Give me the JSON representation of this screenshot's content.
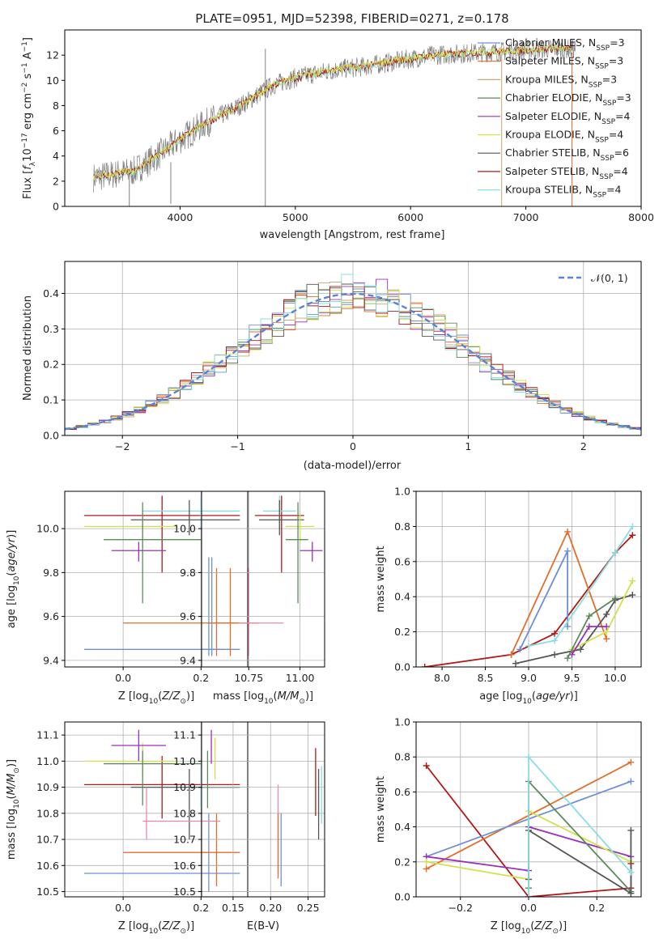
{
  "colors": {
    "observed": "#808080",
    "chabrier_miles": "#6e8fd8",
    "salpeter_miles": "#e36e2a",
    "kroupa_miles": "#c9a86a",
    "chabrier_elodie": "#5a8a5a",
    "salpeter_elodie": "#9b30b8",
    "kroupa_elodie": "#d4e04a",
    "chabrier_stelib": "#555555",
    "salpeter_stelib": "#b01818",
    "kroupa_stelib": "#88dde0",
    "pink": "#ee88aa",
    "normal_curve": "#5b84d4"
  },
  "chart_data": [
    {
      "id": "spectrum",
      "type": "line",
      "title": "PLATE=0951, MJD=52398, FIBERID=0271, z=0.178",
      "xlabel": "wavelength [Angstrom, rest frame]",
      "ylabel": "Flux [f_λ10^-17 erg cm^-2 s^-1 A^-1]",
      "xlim": [
        3000,
        8000
      ],
      "ylim": [
        0,
        14
      ],
      "xticks": [
        4000,
        5000,
        6000,
        7000,
        8000
      ],
      "yticks": [
        0,
        2,
        4,
        6,
        8,
        10,
        12
      ],
      "grid": false,
      "legend_position": "top-right",
      "continuum": {
        "x": [
          3250,
          3400,
          3600,
          3800,
          4000,
          4200,
          4400,
          4600,
          4800,
          5000,
          5200,
          5400,
          5600,
          5800,
          6000,
          6200,
          6400,
          6600,
          6800,
          7000,
          7200,
          7400
        ],
        "y": [
          2.3,
          2.5,
          2.8,
          4.0,
          5.3,
          6.5,
          7.4,
          8.4,
          9.6,
          10.2,
          10.6,
          10.9,
          11.1,
          11.4,
          11.7,
          12.0,
          12.1,
          12.2,
          12.3,
          12.4,
          12.5,
          12.5
        ]
      },
      "legend": [
        {
          "label": "Chabrier MILES, N",
          "sub": "SSP",
          "value": "=3",
          "color_key": "chabrier_miles"
        },
        {
          "label": "Salpeter MILES, N",
          "sub": "SSP",
          "value": "=3",
          "color_key": "salpeter_miles"
        },
        {
          "label": "Kroupa MILES, N",
          "sub": "SSP",
          "value": "=3",
          "color_key": "kroupa_miles"
        },
        {
          "label": "Chabrier ELODIE, N",
          "sub": "SSP",
          "value": "=3",
          "color_key": "chabrier_elodie"
        },
        {
          "label": "Salpeter ELODIE, N",
          "sub": "SSP",
          "value": "=4",
          "color_key": "salpeter_elodie"
        },
        {
          "label": "Kroupa ELODIE, N",
          "sub": "SSP",
          "value": "=4",
          "color_key": "kroupa_elodie"
        },
        {
          "label": "Chabrier STELIB, N",
          "sub": "SSP",
          "value": "=6",
          "color_key": "chabrier_stelib"
        },
        {
          "label": "Salpeter STELIB, N",
          "sub": "SSP",
          "value": "=4",
          "color_key": "salpeter_stelib"
        },
        {
          "label": "Kroupa STELIB, N",
          "sub": "SSP",
          "value": "=4",
          "color_key": "kroupa_stelib"
        }
      ]
    },
    {
      "id": "residuals",
      "type": "bar",
      "xlabel": "(data-model)/error",
      "ylabel": "Normed distribution",
      "xlim": [
        -2.5,
        2.5
      ],
      "ylim": [
        0,
        0.49
      ],
      "xticks": [
        -2,
        -1,
        0,
        1,
        2
      ],
      "yticks": [
        0.0,
        0.1,
        0.2,
        0.3,
        0.4
      ],
      "grid": true,
      "legend_position": "top-right",
      "legend": [
        {
          "label": "𝒩(0, 1)",
          "color_key": "normal_curve",
          "style": "dashed"
        }
      ],
      "bin_width": 0.1
    },
    {
      "id": "age_vs_Z",
      "type": "scatter",
      "xlabel": "Z [log10(Z/Z☉)]",
      "ylabel": "age [log10(age/yr)]",
      "xlim": [
        -0.15,
        0.32
      ],
      "ylim": [
        9.37,
        10.17
      ],
      "xticks": [
        0.0,
        0.2
      ],
      "yticks": [
        9.4,
        9.6,
        9.8,
        10.0
      ],
      "grid": true,
      "points": [
        {
          "c": "salpeter_stelib",
          "x": 0.1,
          "y": 10.06,
          "xe": [
            -0.1,
            0.3
          ],
          "ye": [
            9.8,
            10.15
          ]
        },
        {
          "c": "kroupa_stelib",
          "x": 0.2,
          "y": 10.08,
          "xe": [
            0.05,
            0.3
          ],
          "ye": [
            10.0,
            10.15
          ]
        },
        {
          "c": "chabrier_stelib",
          "x": 0.17,
          "y": 10.04,
          "xe": [
            0.02,
            0.3
          ],
          "ye": [
            9.97,
            10.13
          ]
        },
        {
          "c": "kroupa_elodie",
          "x": 0.05,
          "y": 10.01,
          "xe": [
            -0.1,
            0.14
          ],
          "ye": [
            9.94,
            10.07
          ]
        },
        {
          "c": "chabrier_elodie",
          "x": 0.05,
          "y": 9.95,
          "xe": [
            -0.05,
            0.2
          ],
          "ye": [
            9.66,
            10.12
          ]
        },
        {
          "c": "salpeter_elodie",
          "x": 0.04,
          "y": 9.9,
          "xe": [
            -0.03,
            0.11
          ],
          "ye": [
            9.85,
            9.94
          ]
        },
        {
          "c": "chabrier_miles",
          "x": 0.22,
          "y": 9.45,
          "xe": [
            -0.1,
            0.3
          ],
          "ye": [
            9.42,
            9.87
          ]
        },
        {
          "c": "salpeter_miles",
          "x": 0.24,
          "y": 9.57,
          "xe": [
            0.0,
            0.3
          ],
          "ye": [
            9.42,
            9.82
          ]
        }
      ]
    },
    {
      "id": "age_vs_mass",
      "type": "scatter",
      "xlabel": "mass [log10(M/M☉)]",
      "ylabel": "",
      "xlim": [
        10.52,
        11.12
      ],
      "ylim": [
        9.37,
        10.17
      ],
      "xticks": [
        10.5,
        10.75,
        11.0
      ],
      "yticks": [
        9.4,
        9.6,
        9.8,
        10.0
      ],
      "grid": true,
      "points": [
        {
          "c": "salpeter_stelib",
          "x": 10.91,
          "y": 10.06,
          "xe": [
            10.78,
            11.02
          ],
          "ye": [
            9.8,
            10.15
          ]
        },
        {
          "c": "kroupa_stelib",
          "x": 10.9,
          "y": 10.08,
          "xe": [
            10.82,
            10.98
          ],
          "ye": [
            10.0,
            10.15
          ]
        },
        {
          "c": "chabrier_stelib",
          "x": 10.9,
          "y": 10.04,
          "xe": [
            10.8,
            11.02
          ],
          "ye": [
            9.97,
            10.13
          ]
        },
        {
          "c": "kroupa_elodie",
          "x": 11.0,
          "y": 10.01,
          "xe": [
            10.93,
            11.07
          ],
          "ye": [
            9.94,
            10.07
          ]
        },
        {
          "c": "chabrier_elodie",
          "x": 10.99,
          "y": 9.95,
          "xe": [
            10.93,
            11.04
          ],
          "ye": [
            9.66,
            10.12
          ]
        },
        {
          "c": "salpeter_elodie",
          "x": 11.06,
          "y": 9.9,
          "xe": [
            11.0,
            11.11
          ],
          "ye": [
            9.85,
            9.94
          ]
        },
        {
          "c": "chabrier_miles",
          "x": 10.57,
          "y": 9.45,
          "xe": [
            10.52,
            10.62
          ],
          "ye": [
            9.42,
            9.87
          ]
        },
        {
          "c": "salpeter_miles",
          "x": 10.66,
          "y": 9.57,
          "xe": [
            10.55,
            10.8
          ],
          "ye": [
            9.42,
            9.82
          ]
        },
        {
          "c": "pink",
          "x": 10.75,
          "y": 9.57,
          "xe": [
            10.7,
            10.92
          ],
          "ye": [
            9.42,
            9.82
          ]
        }
      ]
    },
    {
      "id": "mass_weight_vs_age",
      "type": "line",
      "xlabel": "age [log10(age/yr)]",
      "ylabel": "mass weight",
      "xlim": [
        7.7,
        10.3
      ],
      "ylim": [
        0,
        1
      ],
      "xticks": [
        8.0,
        8.5,
        9.0,
        9.5,
        10.0
      ],
      "yticks": [
        0.0,
        0.2,
        0.4,
        0.6,
        0.8,
        1.0
      ],
      "grid": true,
      "series": [
        {
          "c": "salpeter_stelib",
          "x": [
            7.8,
            8.8,
            9.3,
            10.0,
            10.2
          ],
          "y": [
            0.0,
            0.07,
            0.19,
            0.65,
            0.75
          ]
        },
        {
          "c": "salpeter_miles",
          "x": [
            8.8,
            9.45,
            9.9
          ],
          "y": [
            0.07,
            0.77,
            0.16
          ]
        },
        {
          "c": "chabrier_miles",
          "x": [
            8.9,
            9.45,
            9.45
          ],
          "y": [
            0.1,
            0.66,
            0.23
          ]
        },
        {
          "c": "kroupa_stelib",
          "x": [
            9.0,
            9.3,
            10.0,
            10.2
          ],
          "y": [
            0.12,
            0.15,
            0.65,
            0.8
          ]
        },
        {
          "c": "chabrier_stelib",
          "x": [
            8.85,
            9.3,
            9.6,
            9.9,
            10.0,
            10.2
          ],
          "y": [
            0.02,
            0.07,
            0.1,
            0.3,
            0.38,
            0.41
          ]
        },
        {
          "c": "kroupa_elodie",
          "x": [
            9.5,
            9.9,
            10.2
          ],
          "y": [
            0.1,
            0.2,
            0.49
          ]
        },
        {
          "c": "salpeter_elodie",
          "x": [
            9.5,
            9.7,
            9.9
          ],
          "y": [
            0.07,
            0.23,
            0.23
          ]
        },
        {
          "c": "chabrier_elodie",
          "x": [
            9.45,
            9.7,
            10.0
          ],
          "y": [
            0.05,
            0.29,
            0.39
          ]
        }
      ]
    },
    {
      "id": "mass_vs_Z",
      "type": "scatter",
      "xlabel": "Z [log10(Z/Z☉)]",
      "ylabel": "mass [log10(M/M☉)]",
      "xlim": [
        -0.15,
        0.32
      ],
      "ylim": [
        10.48,
        11.15
      ],
      "xticks": [
        0.0,
        0.2
      ],
      "yticks": [
        10.5,
        10.6,
        10.7,
        10.8,
        10.9,
        11.0,
        11.1
      ],
      "grid": true,
      "points": [
        {
          "c": "salpeter_stelib",
          "x": 0.1,
          "y": 10.91,
          "xe": [
            -0.1,
            0.3
          ],
          "ye": [
            10.78,
            11.02
          ]
        },
        {
          "c": "kroupa_stelib",
          "x": 0.2,
          "y": 10.9,
          "xe": [
            0.05,
            0.3
          ],
          "ye": [
            10.82,
            10.98
          ]
        },
        {
          "c": "chabrier_stelib",
          "x": 0.17,
          "y": 10.9,
          "xe": [
            0.02,
            0.3
          ],
          "ye": [
            10.7,
            10.97
          ]
        },
        {
          "c": "kroupa_elodie",
          "x": 0.05,
          "y": 11.0,
          "xe": [
            -0.1,
            0.14
          ],
          "ye": [
            10.93,
            11.07
          ]
        },
        {
          "c": "chabrier_elodie",
          "x": 0.05,
          "y": 10.99,
          "xe": [
            -0.05,
            0.2
          ],
          "ye": [
            10.83,
            11.04
          ]
        },
        {
          "c": "salpeter_elodie",
          "x": 0.04,
          "y": 11.06,
          "xe": [
            -0.03,
            0.11
          ],
          "ye": [
            11.0,
            11.12
          ]
        },
        {
          "c": "chabrier_miles",
          "x": 0.22,
          "y": 10.57,
          "xe": [
            -0.1,
            0.3
          ],
          "ye": [
            10.5,
            10.8
          ]
        },
        {
          "c": "salpeter_miles",
          "x": 0.24,
          "y": 10.65,
          "xe": [
            0.0,
            0.3
          ],
          "ye": [
            10.52,
            10.8
          ]
        },
        {
          "c": "pink",
          "x": 0.06,
          "y": 10.77,
          "xe": [
            0.05,
            0.25
          ],
          "ye": [
            10.7,
            10.9
          ]
        }
      ]
    },
    {
      "id": "mass_vs_ebv",
      "type": "scatter",
      "xlabel": "E(B-V)",
      "ylabel": "",
      "xlim": [
        0.108,
        0.272
      ],
      "ylim": [
        10.48,
        11.15
      ],
      "xticks": [
        0.15,
        0.2,
        0.25
      ],
      "yticks": [
        10.5,
        10.6,
        10.7,
        10.8,
        10.9,
        11.0,
        11.1
      ],
      "grid": true,
      "points": [
        {
          "c": "chabrier_elodie",
          "x": 0.116,
          "ye": [
            10.82,
            11.04
          ]
        },
        {
          "c": "salpeter_elodie",
          "x": 0.121,
          "ye": [
            10.99,
            11.12
          ]
        },
        {
          "c": "kroupa_elodie",
          "x": 0.126,
          "ye": [
            10.93,
            11.09
          ]
        },
        {
          "c": "pink",
          "x": 0.21,
          "ye": [
            10.57,
            10.91
          ]
        },
        {
          "c": "salpeter_miles",
          "x": 0.21,
          "ye": [
            10.55,
            10.8
          ]
        },
        {
          "c": "chabrier_miles",
          "x": 0.214,
          "ye": [
            10.52,
            10.8
          ]
        },
        {
          "c": "salpeter_stelib",
          "x": 0.26,
          "ye": [
            10.79,
            11.05
          ]
        },
        {
          "c": "chabrier_stelib",
          "x": 0.264,
          "ye": [
            10.7,
            10.97
          ]
        },
        {
          "c": "kroupa_stelib",
          "x": 0.268,
          "ye": [
            10.76,
            10.98
          ]
        }
      ]
    },
    {
      "id": "mass_weight_vs_Z",
      "type": "line",
      "xlabel": "Z [log10(Z/Z☉)]",
      "ylabel": "mass weight",
      "xlim": [
        -0.33,
        0.33
      ],
      "ylim": [
        0,
        1
      ],
      "xticks": [
        -0.2,
        0.0,
        0.2
      ],
      "yticks": [
        0.0,
        0.2,
        0.4,
        0.6,
        0.8,
        1.0
      ],
      "grid": true,
      "series": [
        {
          "c": "salpeter_stelib",
          "x": [
            -0.3,
            0.0,
            0.3,
            0.3
          ],
          "y": [
            0.75,
            0.0,
            0.05,
            0.19
          ]
        },
        {
          "c": "salpeter_miles",
          "x": [
            -0.3,
            0.3
          ],
          "y": [
            0.16,
            0.77
          ]
        },
        {
          "c": "chabrier_miles",
          "x": [
            -0.3,
            0.3
          ],
          "y": [
            0.23,
            0.66
          ]
        },
        {
          "c": "salpeter_elodie",
          "x": [
            -0.3,
            0.0,
            0.0,
            0.3
          ],
          "y": [
            0.23,
            0.15,
            0.4,
            0.23
          ]
        },
        {
          "c": "kroupa_elodie",
          "x": [
            -0.3,
            0.0,
            0.0,
            0.3
          ],
          "y": [
            0.2,
            0.1,
            0.49,
            0.2
          ]
        },
        {
          "c": "chabrier_elodie",
          "x": [
            0.0,
            0.0,
            0.3
          ],
          "y": [
            0.05,
            0.66,
            0.03
          ]
        },
        {
          "c": "chabrier_stelib",
          "x": [
            0.0,
            0.0,
            0.3,
            0.3
          ],
          "y": [
            0.1,
            0.38,
            0.02,
            0.38
          ]
        },
        {
          "c": "kroupa_stelib",
          "x": [
            0.0,
            0.0,
            0.3
          ],
          "y": [
            0.0,
            0.8,
            0.14
          ]
        }
      ]
    }
  ]
}
